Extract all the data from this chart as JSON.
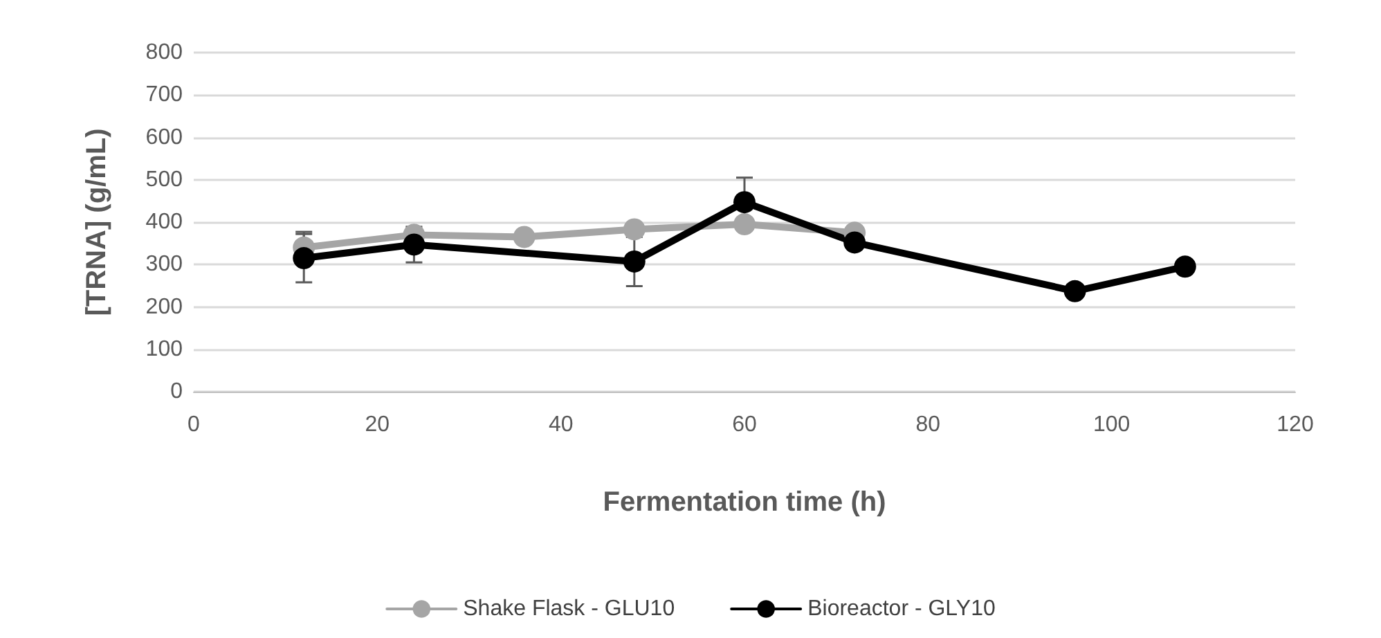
{
  "chart_data": {
    "type": "line",
    "xlabel": "Fermentation time (h)",
    "ylabel": "[TRNA] (g/mL)",
    "xlim": [
      0,
      120
    ],
    "xticks": [
      0,
      20,
      40,
      60,
      80,
      100,
      120
    ],
    "ylim": [
      0,
      800
    ],
    "yticks": [
      0,
      100,
      200,
      300,
      400,
      500,
      600,
      700,
      800
    ],
    "grid": "y",
    "legend": "bottom",
    "marker": "circle",
    "line_style": "solid",
    "series": [
      {
        "name": "Shake Flask - GLU10",
        "color": "#a5a5a5",
        "x": [
          12,
          24,
          36,
          48,
          60,
          72
        ],
        "values": [
          340,
          370,
          365,
          383,
          395,
          375
        ],
        "errors": [
          37,
          null,
          null,
          null,
          null,
          null
        ]
      },
      {
        "name": "Bioreactor - GLY10",
        "color": "#000000",
        "x": [
          12,
          24,
          48,
          60,
          72,
          96,
          108
        ],
        "values": [
          315,
          347,
          307,
          447,
          352,
          237,
          295
        ],
        "errors": [
          57,
          42,
          58,
          58,
          null,
          null,
          null
        ]
      }
    ]
  }
}
